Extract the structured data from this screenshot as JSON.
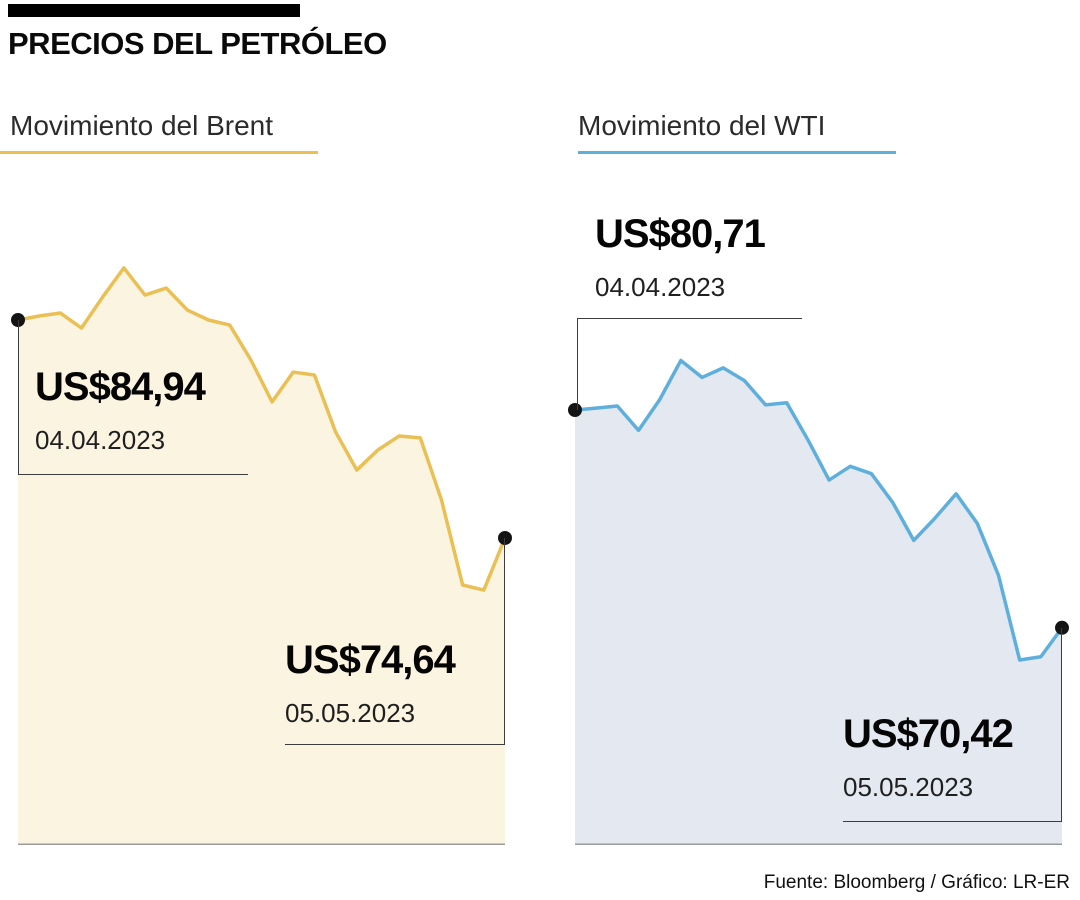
{
  "header": {
    "title": "PRECIOS DEL PETRÓLEO"
  },
  "source": "Fuente: Bloomberg / Gráfico: LR-ER",
  "chart_data": [
    {
      "type": "area",
      "title": "Movimiento del Brent",
      "line_color": "#EAC054",
      "fill_color": "#FBF4E1",
      "xlabel": "",
      "ylabel": "",
      "start": {
        "label": "US$84,94",
        "date": "04.04.2023",
        "value": 84.94
      },
      "end": {
        "label": "US$74,64",
        "date": "05.05.2023",
        "value": 74.64
      },
      "values": [
        84.94,
        85.13,
        85.27,
        84.56,
        86.03,
        87.4,
        86.12,
        86.45,
        85.41,
        84.94,
        84.7,
        83.05,
        81.07,
        82.48,
        82.34,
        79.65,
        77.85,
        78.8,
        79.46,
        79.37,
        76.44,
        72.42,
        72.18,
        74.64
      ]
    },
    {
      "type": "area",
      "title": "Movimiento del WTI",
      "line_color": "#5FAFDC",
      "fill_color": "#E3E8F1",
      "xlabel": "",
      "ylabel": "",
      "start": {
        "label": "US$80,71",
        "date": "04.04.2023",
        "value": 80.71
      },
      "end": {
        "label": "US$70,42",
        "date": "05.05.2023",
        "value": 70.42
      },
      "values": [
        80.71,
        80.8,
        80.9,
        79.75,
        81.2,
        83.05,
        82.25,
        82.7,
        82.1,
        80.95,
        81.05,
        79.3,
        77.4,
        78.05,
        77.7,
        76.35,
        74.55,
        75.6,
        76.75,
        75.35,
        72.9,
        68.9,
        69.05,
        70.42
      ]
    }
  ]
}
